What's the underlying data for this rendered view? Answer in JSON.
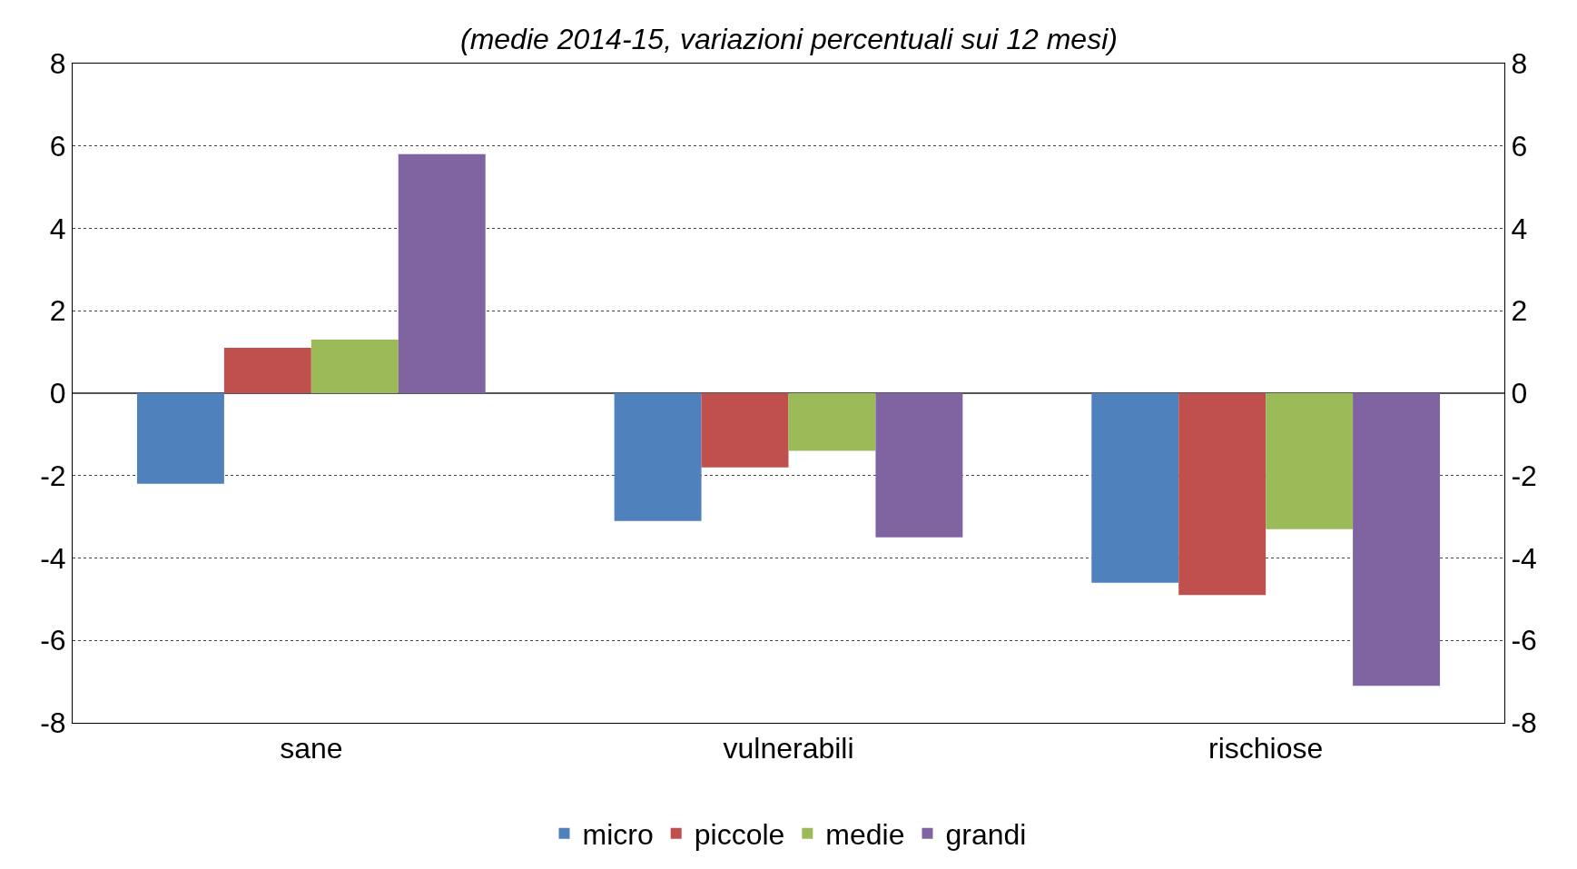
{
  "chart_data": {
    "type": "bar",
    "subtitle": "(medie 2014-15, variazioni percentuali sui 12 mesi)",
    "categories": [
      "sane",
      "vulnerabili",
      "rischiose"
    ],
    "series": [
      {
        "name": "micro",
        "color": "#4f81bd",
        "values": [
          -2.2,
          -3.1,
          -4.6
        ]
      },
      {
        "name": "piccole",
        "color": "#c0504d",
        "values": [
          1.1,
          -1.8,
          -4.9
        ]
      },
      {
        "name": "medie",
        "color": "#9bbb59",
        "values": [
          1.3,
          -1.4,
          -3.3
        ]
      },
      {
        "name": "grandi",
        "color": "#8064a2",
        "values": [
          5.8,
          -3.5,
          -7.1
        ]
      }
    ],
    "ylim": [
      -8,
      8
    ],
    "yticks": [
      -8,
      -6,
      -4,
      -2,
      0,
      2,
      4,
      6,
      8
    ],
    "y2lim": [
      -8,
      8
    ],
    "y2ticks": [
      -8,
      -6,
      -4,
      -2,
      0,
      2,
      4,
      6,
      8
    ],
    "grid": "y",
    "legend": "bottom"
  }
}
